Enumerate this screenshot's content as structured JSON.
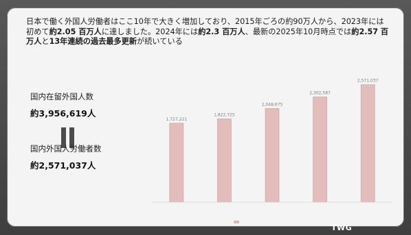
{
  "headline": {
    "p1": "日本で働く外国人労働者はここ10年で大きく増加しており、2015年ごろの約90万人から、2023年には初めて",
    "p2": "約2.05 百万人",
    "p3": "に達しました。2024年には",
    "p4": "約2.3 百万人",
    "p5": "、最新の2025年10月時点では",
    "p6": "約2.57 百万人",
    "p7": "と",
    "p8": "13年連続の過去最多更新",
    "p9": "が続いている"
  },
  "stats": {
    "residents_label": "国内在留外国人数",
    "residents_value": "約3,956,619人",
    "workers_label": "国内外国人労働者数",
    "workers_value": "約2,571,037人"
  },
  "chart_data": {
    "type": "bar",
    "title": "",
    "categories": [
      "",
      "",
      "",
      "",
      ""
    ],
    "values": [
      1727221,
      1822725,
      2048675,
      2302587,
      2571037
    ],
    "data_labels": [
      "1,727,221",
      "1,822,725",
      "2,048,675",
      "2,302,587",
      "2,571,037"
    ],
    "ylim": [
      0,
      3000000
    ],
    "grid": false,
    "legend": "bottom"
  },
  "colors": {
    "bar": "#e3bcbc",
    "bar_edge": "#c79a9a",
    "slide_bg": "#f4f4f4"
  },
  "logo": {
    "mark": "TWG"
  }
}
